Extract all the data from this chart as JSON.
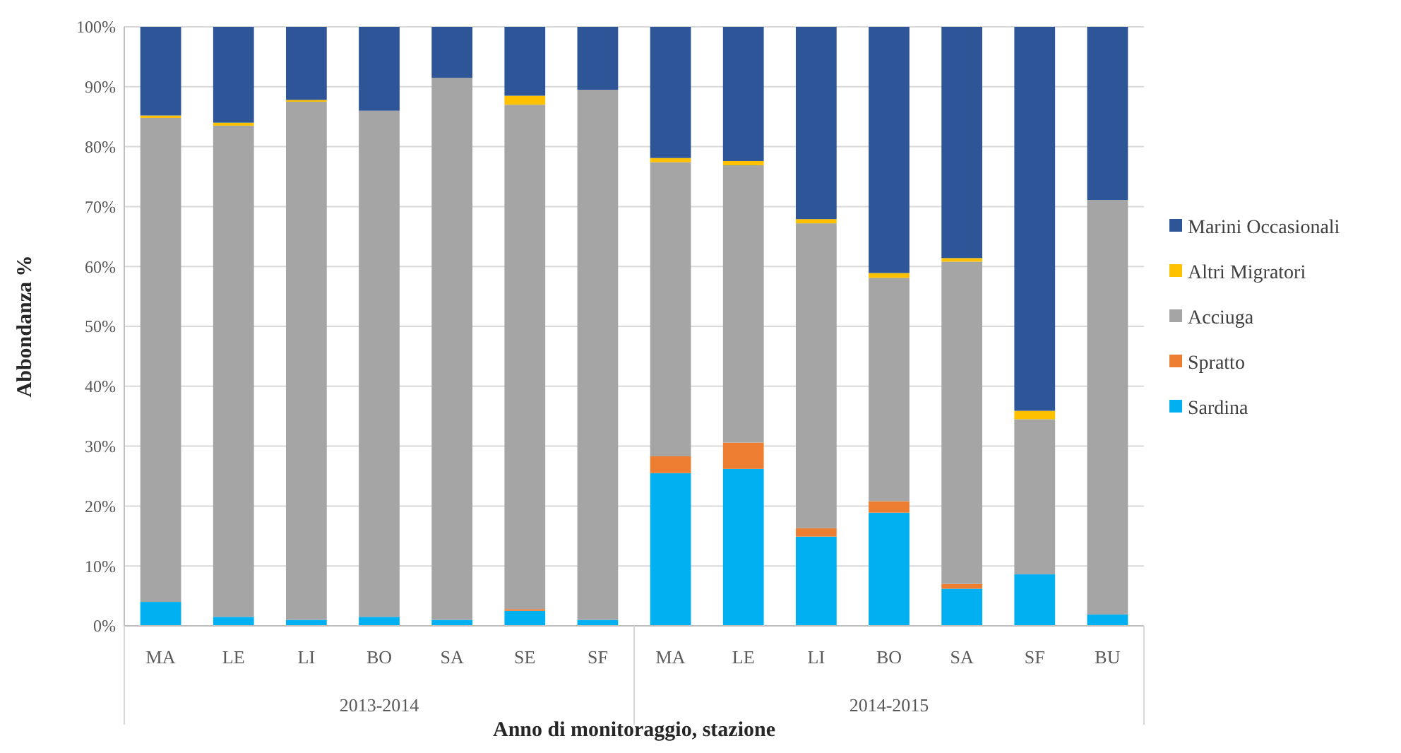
{
  "chart_data": {
    "type": "bar",
    "stacked": true,
    "xlabel": "Anno di monitoraggio, stazione",
    "ylabel": "Abbondanza %",
    "categories": [
      "MA",
      "LE",
      "LI",
      "BO",
      "SA",
      "SE",
      "SF",
      "MA",
      "LE",
      "LI",
      "BO",
      "SA",
      "SF",
      "BU"
    ],
    "annotations": [
      "2013-2014",
      "2014-2015"
    ],
    "series": [
      {
        "name": "Sardina",
        "color": "#00b0f0",
        "values": [
          4,
          1.5,
          1,
          1.5,
          1,
          2.5,
          1,
          25.5,
          26.2,
          14.9,
          18.9,
          6.2,
          8.6,
          1.9
        ]
      },
      {
        "name": "Spratto",
        "color": "#ed7d31",
        "values": [
          0,
          0,
          0,
          0,
          0,
          0.3,
          0,
          2.8,
          4.4,
          1.4,
          1.9,
          0.8,
          0,
          0
        ]
      },
      {
        "name": "Acciuga",
        "color": "#a5a5a5",
        "values": [
          80.8,
          82,
          86.5,
          84.5,
          90.5,
          84.2,
          88.5,
          49.1,
          46.3,
          50.9,
          37.3,
          53.8,
          25.9,
          69.2
        ]
      },
      {
        "name": "Altri Migratori",
        "color": "#ffc000",
        "values": [
          0.4,
          0.5,
          0.3,
          0,
          0,
          1.5,
          0,
          0.7,
          0.7,
          0.7,
          0.8,
          0.6,
          1.4,
          0
        ]
      },
      {
        "name": "Marini Occasionali",
        "color": "#2e5597",
        "values": [
          14.8,
          16,
          12.2,
          14,
          8.5,
          11.5,
          10.5,
          21.9,
          22.4,
          32.1,
          41.1,
          38.6,
          64.1,
          28.9
        ]
      }
    ],
    "ylim": [
      0,
      100
    ],
    "yticks": [
      {
        "value": 0,
        "label": "0%"
      },
      {
        "value": 10,
        "label": "10%"
      },
      {
        "value": 20,
        "label": "20%"
      },
      {
        "value": 30,
        "label": "30%"
      },
      {
        "value": 40,
        "label": "40%"
      },
      {
        "value": 50,
        "label": "50%"
      },
      {
        "value": 60,
        "label": "60%"
      },
      {
        "value": 70,
        "label": "70%"
      },
      {
        "value": 80,
        "label": "80%"
      },
      {
        "value": 90,
        "label": "90%"
      },
      {
        "value": 100,
        "label": "100%"
      }
    ],
    "grid": "y",
    "legend": "right"
  }
}
